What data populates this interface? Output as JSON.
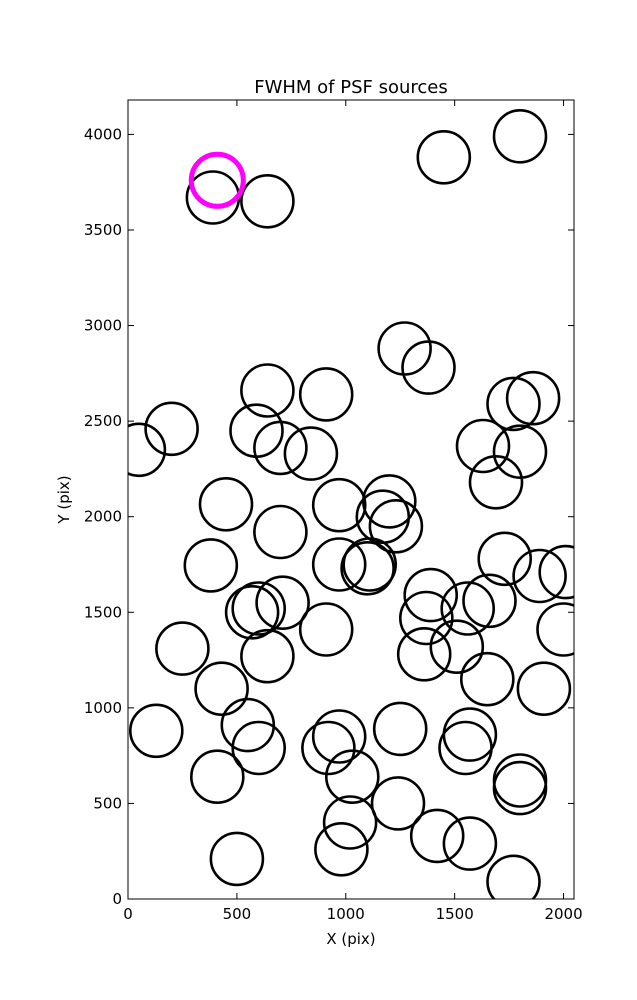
{
  "chart_data": {
    "type": "scatter",
    "title": "FWHM of PSF sources",
    "xlabel": "X (pix)",
    "ylabel": "Y (pix)",
    "xlim": [
      0,
      2048
    ],
    "ylim": [
      0,
      4180
    ],
    "x_ticks": [
      0,
      500,
      1000,
      1500,
      2000
    ],
    "y_ticks": [
      0,
      500,
      1000,
      1500,
      2000,
      2500,
      3000,
      3500,
      4000
    ],
    "x_tick_labels": [
      "0",
      "500",
      "1000",
      "1500",
      "2000"
    ],
    "y_tick_labels": [
      "0",
      "500",
      "1000",
      "1500",
      "2000",
      "2500",
      "3000",
      "3500",
      "4000"
    ],
    "grid": false,
    "legend": "none",
    "marker": "open-circle",
    "marker_color": "#000000",
    "highlight_color": "#ff00ff",
    "series": [
      {
        "points": [
          [
            50,
            2350
          ],
          [
            200,
            2460
          ],
          [
            130,
            880
          ],
          [
            250,
            1310
          ],
          [
            380,
            1745
          ],
          [
            450,
            2065
          ],
          [
            430,
            1100
          ],
          [
            410,
            640
          ],
          [
            390,
            3670
          ],
          [
            500,
            210
          ],
          [
            550,
            910
          ],
          [
            600,
            790
          ],
          [
            570,
            1500
          ],
          [
            600,
            1520
          ],
          [
            640,
            1270
          ],
          [
            590,
            2450
          ],
          [
            640,
            2660
          ],
          [
            700,
            2360
          ],
          [
            710,
            1550
          ],
          [
            700,
            1920
          ],
          [
            640,
            3650
          ],
          [
            840,
            2330
          ],
          [
            910,
            2640
          ],
          [
            910,
            1410
          ],
          [
            920,
            790
          ],
          [
            970,
            850
          ],
          [
            970,
            2060
          ],
          [
            970,
            1750
          ],
          [
            1100,
            1730
          ],
          [
            1110,
            1750
          ],
          [
            1030,
            640
          ],
          [
            1020,
            400
          ],
          [
            980,
            260
          ],
          [
            1200,
            2080
          ],
          [
            1170,
            2000
          ],
          [
            1230,
            1950
          ],
          [
            1250,
            890
          ],
          [
            1240,
            500
          ],
          [
            1270,
            2880
          ],
          [
            1380,
            2780
          ],
          [
            1390,
            1590
          ],
          [
            1370,
            1470
          ],
          [
            1360,
            1280
          ],
          [
            1420,
            330
          ],
          [
            1450,
            3880
          ],
          [
            1510,
            1320
          ],
          [
            1550,
            790
          ],
          [
            1570,
            860
          ],
          [
            1570,
            290
          ],
          [
            1560,
            1520
          ],
          [
            1630,
            2370
          ],
          [
            1660,
            1560
          ],
          [
            1650,
            1150
          ],
          [
            1690,
            2180
          ],
          [
            1730,
            1780
          ],
          [
            1770,
            2590
          ],
          [
            1800,
            2340
          ],
          [
            1860,
            2620
          ],
          [
            1800,
            3990
          ],
          [
            1800,
            620
          ],
          [
            1800,
            580
          ],
          [
            1770,
            90
          ],
          [
            1890,
            1690
          ],
          [
            1910,
            1100
          ],
          [
            2010,
            1710
          ],
          [
            2000,
            1410
          ]
        ]
      },
      {
        "highlight": true,
        "points": [
          [
            410,
            3760
          ]
        ]
      }
    ]
  }
}
